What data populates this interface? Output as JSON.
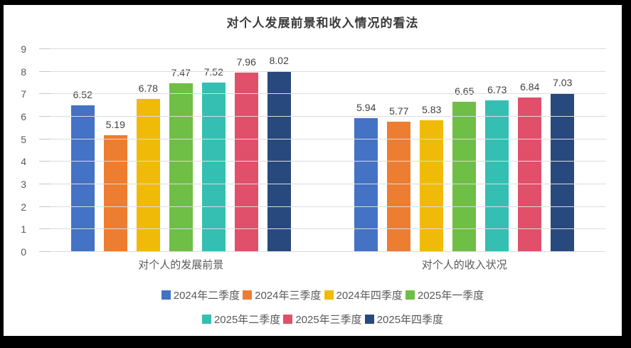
{
  "chart_data": {
    "type": "bar",
    "title": "对个人发展前景和收入情况的看法",
    "categories": [
      "对个人的发展前景",
      "对个人的收入状况"
    ],
    "series": [
      {
        "name": "2024年二季度",
        "color": "#4472C4",
        "values": [
          6.52,
          5.94
        ]
      },
      {
        "name": "2024年三季度",
        "color": "#ED7D31",
        "values": [
          5.19,
          5.77
        ]
      },
      {
        "name": "2024年四季度",
        "color": "#F0BA08",
        "values": [
          6.78,
          5.83
        ]
      },
      {
        "name": "2025年一季度",
        "color": "#6FBE45",
        "values": [
          7.47,
          6.65
        ]
      },
      {
        "name": "2025年二季度",
        "color": "#35BFB2",
        "values": [
          7.52,
          6.73
        ]
      },
      {
        "name": "2025年三季度",
        "color": "#E0506A",
        "values": [
          7.96,
          6.84
        ]
      },
      {
        "name": "2025年四季度",
        "color": "#28497D",
        "values": [
          8.02,
          7.03
        ]
      }
    ],
    "y_ticks": [
      0,
      1,
      2,
      3,
      4,
      5,
      6,
      7,
      8,
      9
    ],
    "ylim": [
      0,
      9
    ],
    "grid": true,
    "legend_position": "bottom",
    "legend_rows": [
      [
        0,
        1,
        2,
        3
      ],
      [
        4,
        5,
        6
      ]
    ],
    "colors": {
      "gridline": "#dcdcdc",
      "axis_text": "#595959",
      "data_label": "#404040",
      "title_text": "#3b3b3b",
      "frame": "#000000"
    }
  }
}
